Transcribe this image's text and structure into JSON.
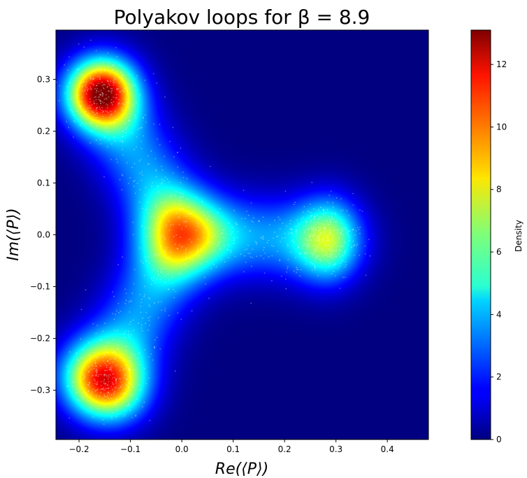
{
  "chart_data": {
    "type": "heatmap",
    "title": "Polyakov loops for β = 8.9",
    "xlabel": "Re(⟨P⟩)",
    "ylabel": "Im(⟨P⟩)",
    "xlim": [
      -0.245,
      0.48
    ],
    "ylim": [
      -0.395,
      0.395
    ],
    "x_ticks": [
      -0.2,
      -0.1,
      0.0,
      0.1,
      0.2,
      0.3,
      0.4
    ],
    "x_tick_labels": [
      "−0.2",
      "−0.1",
      "0.0",
      "0.1",
      "0.2",
      "0.3",
      "0.4"
    ],
    "y_ticks": [
      -0.3,
      -0.2,
      -0.1,
      0.0,
      0.1,
      0.2,
      0.3
    ],
    "y_tick_labels": [
      "−0.3",
      "−0.2",
      "−0.1",
      "0.0",
      "0.1",
      "0.2",
      "0.3"
    ],
    "colorbar": {
      "label": "Density",
      "range": [
        0,
        13.1
      ],
      "ticks": [
        0,
        2,
        4,
        6,
        8,
        10,
        12
      ],
      "tick_labels": [
        "0",
        "2",
        "4",
        "6",
        "8",
        "10",
        "12"
      ],
      "colormap": "jet"
    },
    "density_peaks": [
      {
        "x": -0.155,
        "y": 0.27,
        "peak": 13.1
      },
      {
        "x": -0.15,
        "y": -0.28,
        "peak": 10.8
      },
      {
        "x": 0.28,
        "y": -0.01,
        "peak": 5.4
      }
    ],
    "grid": false
  }
}
